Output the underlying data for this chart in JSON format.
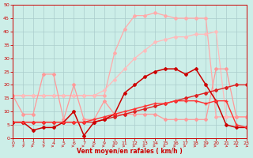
{
  "xlabel": "Vent moyen/en rafales ( km/h )",
  "bg_color": "#cceee8",
  "grid_color": "#aacccc",
  "xlim": [
    0,
    23
  ],
  "ylim": [
    0,
    50
  ],
  "yticks": [
    0,
    5,
    10,
    15,
    20,
    25,
    30,
    35,
    40,
    45,
    50
  ],
  "xticks": [
    0,
    1,
    2,
    3,
    4,
    5,
    6,
    7,
    8,
    9,
    10,
    11,
    12,
    13,
    14,
    15,
    16,
    17,
    18,
    19,
    20,
    21,
    22,
    23
  ],
  "lines": [
    {
      "x": [
        0,
        1,
        2,
        3,
        4,
        5,
        6,
        7,
        8,
        9,
        10,
        11,
        12,
        13,
        14,
        15,
        16,
        17,
        18,
        19,
        20,
        21,
        22,
        23
      ],
      "y": [
        16,
        16,
        16,
        16,
        16,
        16,
        16,
        16,
        16,
        16,
        32,
        41,
        46,
        46,
        47,
        46,
        45,
        45,
        45,
        45,
        8,
        8,
        8,
        8
      ],
      "color": "#ffaaaa",
      "lw": 0.9,
      "marker": "D",
      "ms": 2.0
    },
    {
      "x": [
        0,
        1,
        2,
        3,
        4,
        5,
        6,
        7,
        8,
        9,
        10,
        11,
        12,
        13,
        14,
        15,
        16,
        17,
        18,
        19,
        20,
        21,
        22,
        23
      ],
      "y": [
        16,
        16,
        16,
        16,
        16,
        16,
        16,
        16,
        16,
        18,
        22,
        26,
        30,
        33,
        36,
        37,
        38,
        38,
        39,
        39,
        40,
        8,
        8,
        8
      ],
      "color": "#ffbbbb",
      "lw": 0.9,
      "marker": "D",
      "ms": 2.0
    },
    {
      "x": [
        0,
        1,
        2,
        3,
        4,
        5,
        6,
        7,
        8,
        9,
        10,
        11,
        12,
        13,
        14,
        15,
        16,
        17,
        18,
        19,
        20,
        21,
        22,
        23
      ],
      "y": [
        16,
        9,
        9,
        24,
        24,
        7,
        20,
        7,
        7,
        14,
        9,
        9,
        9,
        9,
        9,
        7,
        7,
        7,
        7,
        7,
        26,
        26,
        8,
        8
      ],
      "color": "#ff9999",
      "lw": 0.9,
      "marker": "D",
      "ms": 2.0
    },
    {
      "x": [
        0,
        1,
        2,
        3,
        4,
        5,
        6,
        7,
        8,
        9,
        10,
        11,
        12,
        13,
        14,
        15,
        16,
        17,
        18,
        19,
        20,
        21,
        22,
        23
      ],
      "y": [
        6,
        6,
        6,
        6,
        6,
        6,
        6,
        6,
        6,
        7,
        8,
        9,
        10,
        11,
        12,
        13,
        14,
        15,
        16,
        17,
        18,
        19,
        20,
        20
      ],
      "color": "#dd2222",
      "lw": 1.0,
      "marker": "D",
      "ms": 2.0
    },
    {
      "x": [
        0,
        1,
        2,
        3,
        4,
        5,
        6,
        7,
        8,
        9,
        10,
        11,
        12,
        13,
        14,
        15,
        16,
        17,
        18,
        19,
        20,
        21,
        22,
        23
      ],
      "y": [
        6,
        6,
        3,
        4,
        4,
        6,
        10,
        1,
        6,
        7,
        9,
        17,
        20,
        23,
        25,
        26,
        26,
        24,
        26,
        20,
        14,
        5,
        4,
        4
      ],
      "color": "#cc0000",
      "lw": 1.1,
      "marker": "D",
      "ms": 2.0
    },
    {
      "x": [
        0,
        1,
        2,
        3,
        4,
        5,
        6,
        7,
        8,
        9,
        10,
        11,
        12,
        13,
        14,
        15,
        16,
        17,
        18,
        19,
        20,
        21,
        22,
        23
      ],
      "y": [
        6,
        6,
        6,
        6,
        6,
        6,
        6,
        6,
        7,
        8,
        9,
        10,
        11,
        12,
        13,
        13,
        14,
        14,
        14,
        13,
        14,
        14,
        5,
        4
      ],
      "color": "#ff3333",
      "lw": 1.0,
      "marker": "+",
      "ms": 3.5
    }
  ],
  "arrow_angles": [
    45,
    45,
    90,
    45,
    90,
    90,
    90,
    90,
    90,
    90,
    90,
    90,
    90,
    90,
    90,
    90,
    90,
    90,
    90,
    90,
    90,
    135,
    135,
    135
  ]
}
